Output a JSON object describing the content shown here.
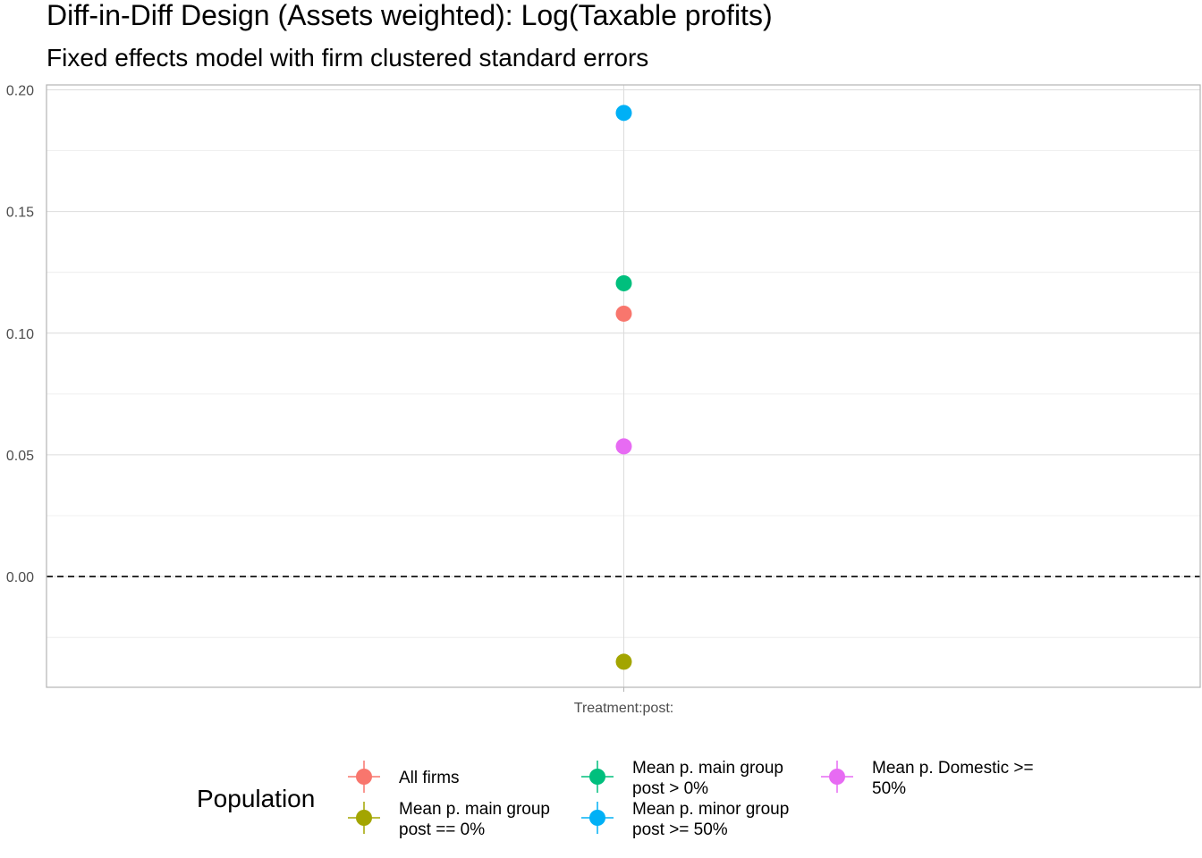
{
  "chart_data": {
    "type": "scatter",
    "title": "Diff-in-Diff Design (Assets weighted): Log(Taxable profits)",
    "subtitle": "Fixed effects model with firm clustered standard errors",
    "xlabel": "",
    "ylabel": "",
    "categories": [
      "Treatment:post:"
    ],
    "y_ticks": [
      "0.00",
      "0.05",
      "0.10",
      "0.15",
      "0.20"
    ],
    "y_tick_values": [
      0.0,
      0.05,
      0.1,
      0.15,
      0.2
    ],
    "ylim": [
      -0.0455,
      0.202
    ],
    "grid": true,
    "reference_line": {
      "y": 0,
      "style": "dashed"
    },
    "legend": {
      "title": "Population",
      "placement": "bottom"
    },
    "series": [
      {
        "name": "All firms",
        "label_lines": [
          "All firms"
        ],
        "color": "#F8766D",
        "x": "Treatment:post:",
        "y": 0.108
      },
      {
        "name": "Mean p. main group post == 0%",
        "label_lines": [
          "Mean p. main group",
          "post == 0%"
        ],
        "color": "#A3A500",
        "x": "Treatment:post:",
        "y": -0.035
      },
      {
        "name": "Mean p. main group post > 0%",
        "label_lines": [
          "Mean p. main group",
          "post > 0%"
        ],
        "color": "#00BF7D",
        "x": "Treatment:post:",
        "y": 0.1205
      },
      {
        "name": "Mean p. minor group post >= 50%",
        "label_lines": [
          "Mean p. minor group",
          "post >= 50%"
        ],
        "color": "#00B0F6",
        "x": "Treatment:post:",
        "y": 0.1905
      },
      {
        "name": "Mean p. Domestic >= 50%",
        "label_lines": [
          "Mean p. Domestic >=",
          "50%"
        ],
        "color": "#E76BF3",
        "x": "Treatment:post:",
        "y": 0.0535
      }
    ]
  }
}
